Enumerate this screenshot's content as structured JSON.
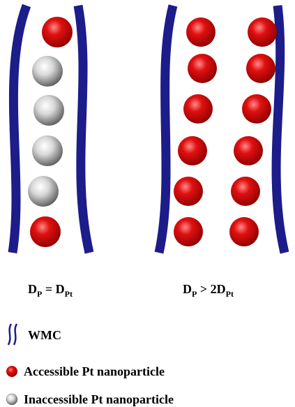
{
  "labels": {
    "left": {
      "main1": "D",
      "sub1": "P",
      "main2": " = D",
      "sub2": "Pt"
    },
    "right": {
      "main1": "D",
      "sub1": "P",
      "main2": " > 2D",
      "sub2": "Pt"
    }
  },
  "legend": {
    "wmc": "WMC",
    "accessible": "Accessible Pt nanoparticle",
    "inaccessible": "Inaccessible Pt nanoparticle"
  }
}
